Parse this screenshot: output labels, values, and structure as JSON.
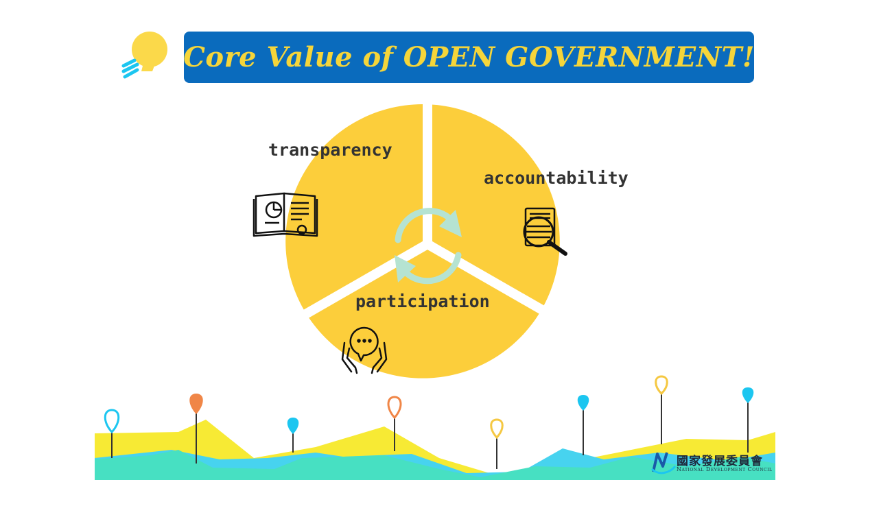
{
  "title": "Core Value of OPEN GOVERNMENT!",
  "segments": [
    {
      "label": "transparency",
      "icon": "book-chart-icon"
    },
    {
      "label": "accountability",
      "icon": "magnifier-document-icon"
    },
    {
      "label": "participation",
      "icon": "hands-speech-icon"
    }
  ],
  "center_icon": "cycle-arrows-icon",
  "decor_icon": "lightbulb-icon",
  "logo": {
    "chinese": "國家發展委員會",
    "english": "National Development Council"
  },
  "colors": {
    "title_bg": "#0a6bbd",
    "title_text": "#f5d53a",
    "segment_fill": "#fcce3b",
    "cycle": "#b5e3d2",
    "mountain_yellow": "#f7ea34",
    "mountain_teal": "#47e0c2",
    "mountain_blue": "#47d3ef",
    "pin_blue": "#1cc6f0",
    "pin_orange": "#f08647",
    "pin_yellow": "#f5c842"
  }
}
